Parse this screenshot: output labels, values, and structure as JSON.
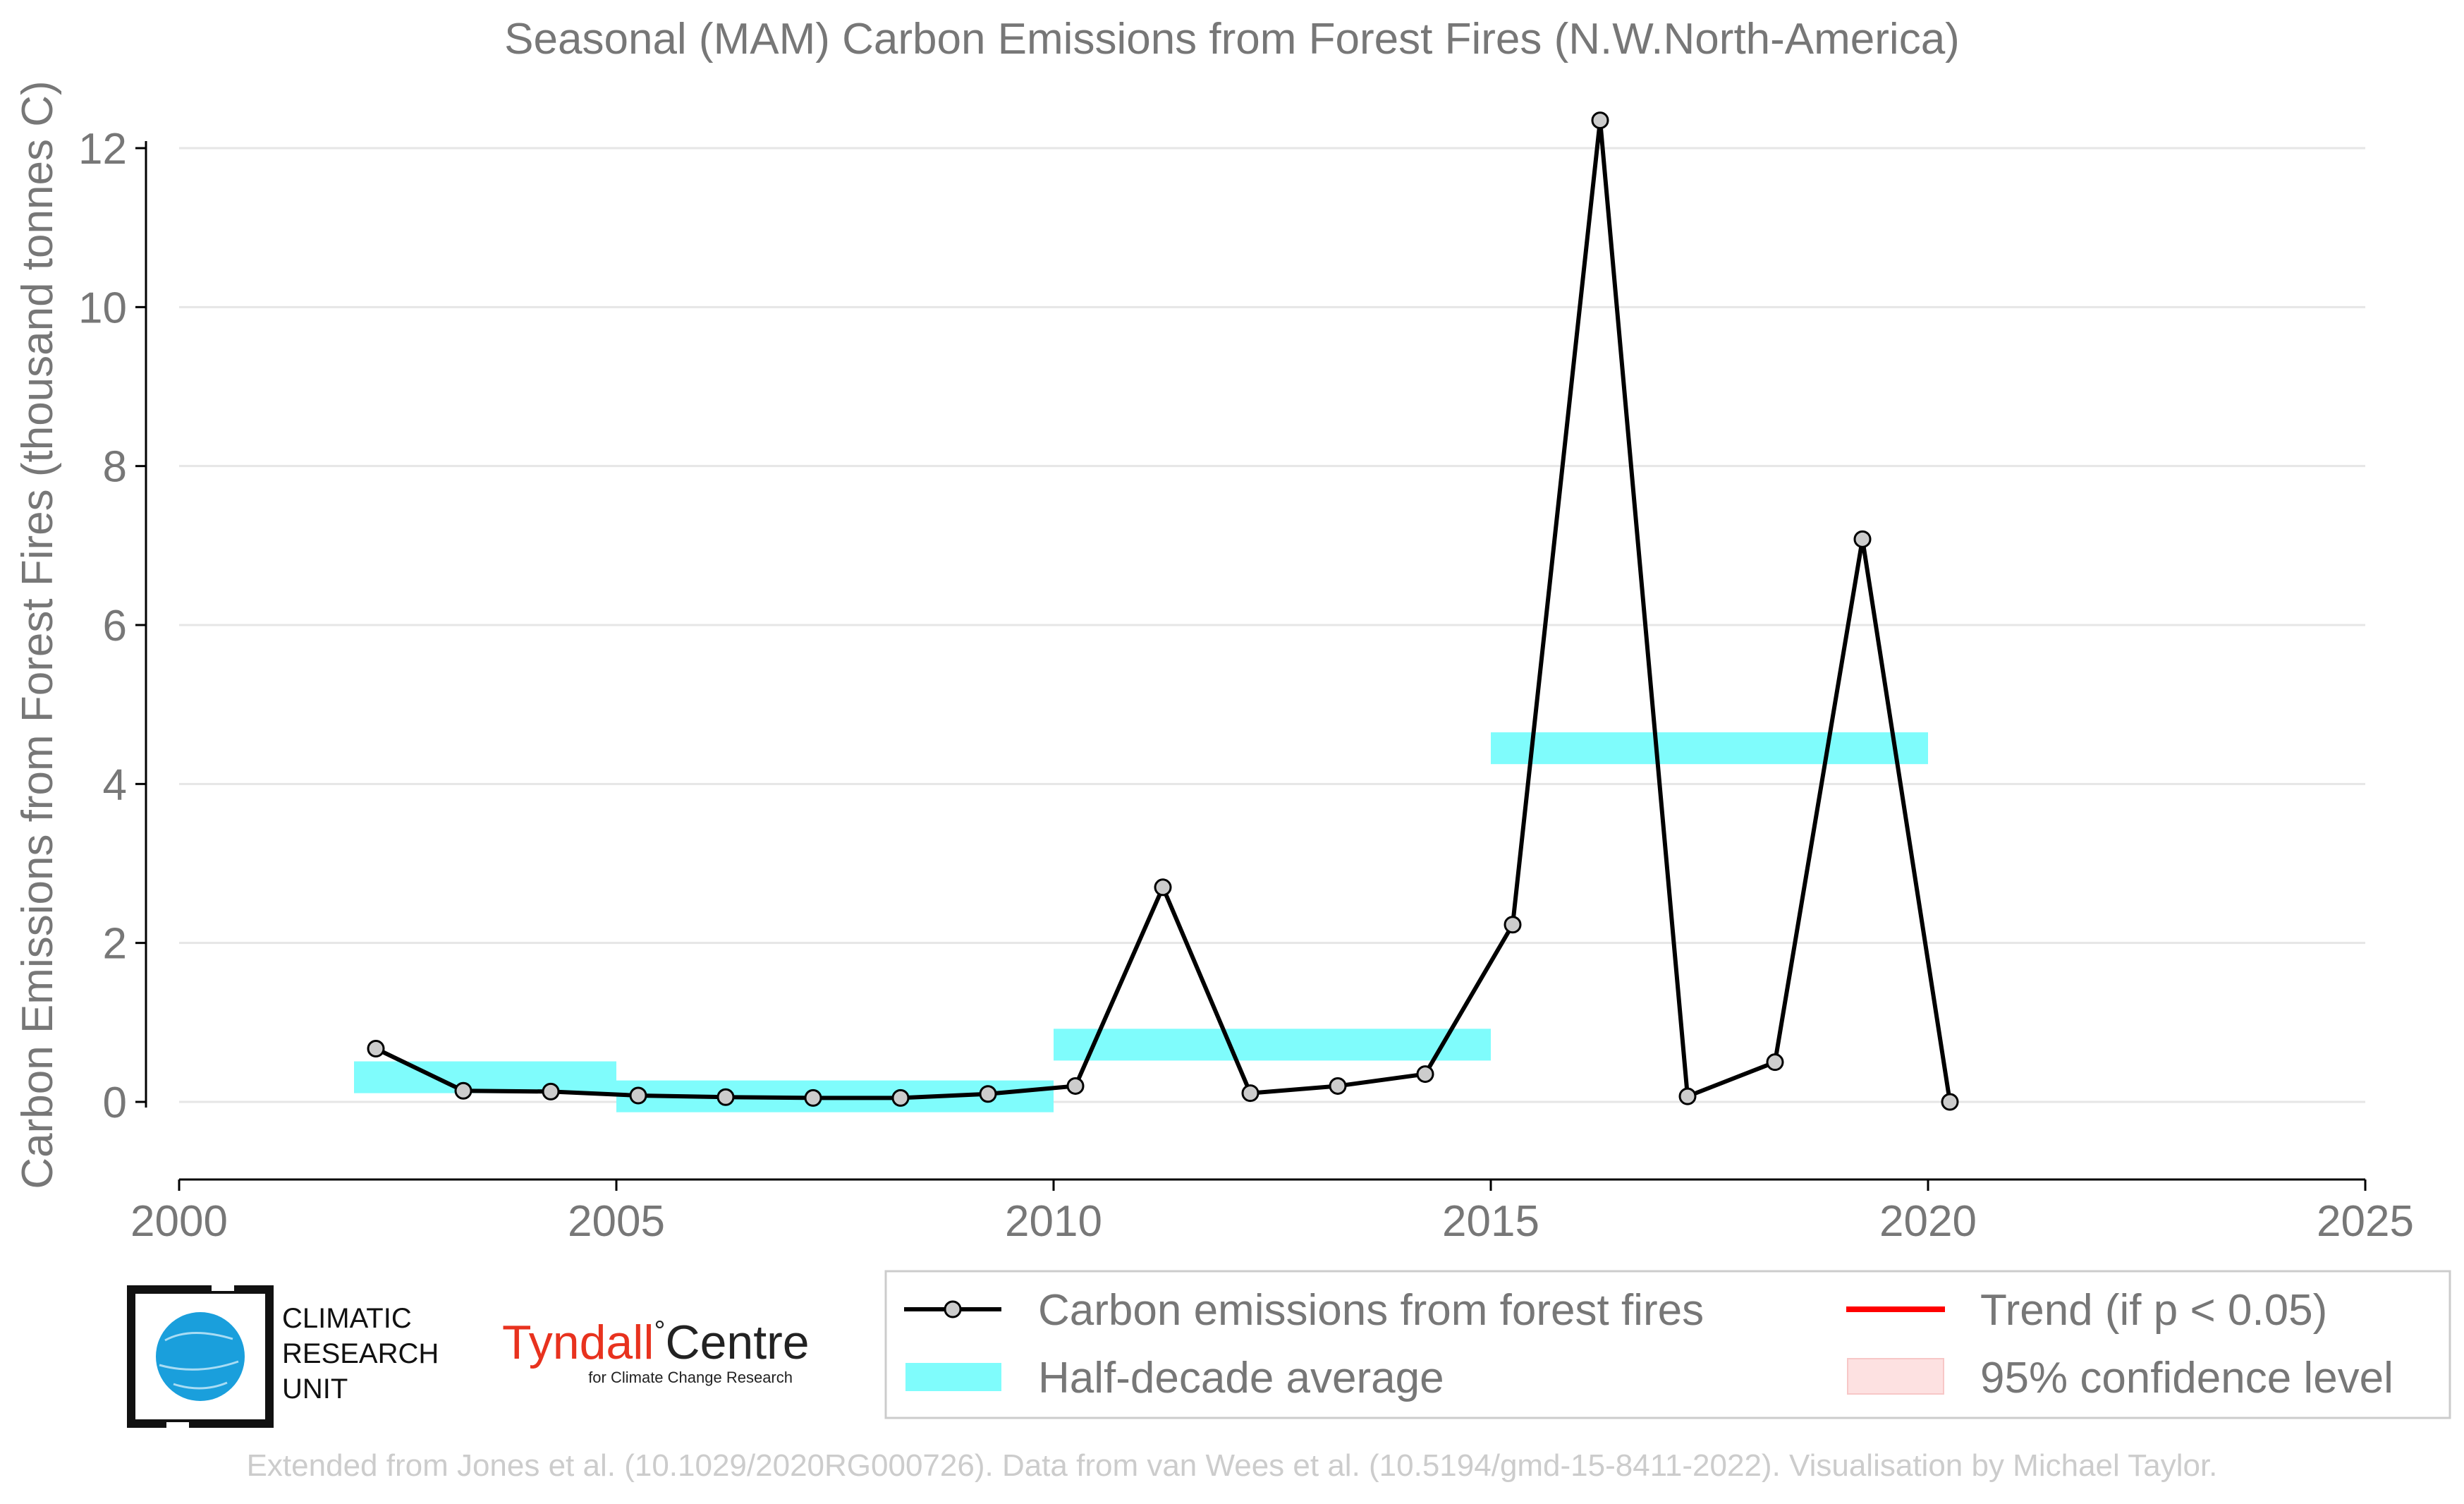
{
  "chart_data": {
    "type": "line",
    "title": "Seasonal (MAM) Carbon Emissions from Forest Fires (N.W.North-America)",
    "ylabel": "Carbon Emissions from Forest Fires (thousand tonnes C)",
    "xlabel": "",
    "xlim": [
      2000,
      2025
    ],
    "ylim": [
      -1,
      12.8
    ],
    "xticks": [
      "2000",
      "2005",
      "2010",
      "2015",
      "2020",
      "2025"
    ],
    "yticks": [
      "0",
      "2",
      "4",
      "6",
      "8",
      "10",
      "12"
    ],
    "grid": "horizontal",
    "legend_position": "bottom",
    "series": [
      {
        "name": "Carbon emissions from forest fires",
        "color": "#000000",
        "x": [
          2002,
          2003,
          2004,
          2005,
          2006,
          2007,
          2008,
          2009,
          2010,
          2011,
          2012,
          2013,
          2014,
          2015,
          2016,
          2017,
          2018,
          2019,
          2020
        ],
        "values": [
          0.67,
          0.14,
          0.13,
          0.08,
          0.06,
          0.05,
          0.05,
          0.1,
          0.2,
          2.7,
          0.11,
          0.2,
          0.35,
          2.23,
          12.35,
          0.07,
          0.5,
          7.08,
          0.0
        ]
      }
    ],
    "half_decade_average": {
      "name": "Half-decade average",
      "color": "#7ffcfc",
      "segments": [
        {
          "x0": 2002,
          "x1": 2005,
          "value": 0.31
        },
        {
          "x0": 2005,
          "x1": 2010,
          "value": 0.07
        },
        {
          "x0": 2010,
          "x1": 2015,
          "value": 0.72
        },
        {
          "x0": 2015,
          "x1": 2020,
          "value": 4.45
        }
      ]
    },
    "legend": [
      {
        "label": "Carbon emissions from forest fires",
        "style": "line-marker",
        "color": "#000000"
      },
      {
        "label": "Trend (if p < 0.05)",
        "style": "line",
        "color": "#ff0000"
      },
      {
        "label": "Half-decade average",
        "style": "band",
        "color": "#7ffcfc"
      },
      {
        "label": "95% confidence level",
        "style": "band",
        "color": "#fde1e1"
      }
    ]
  },
  "logos": {
    "cru": [
      "CLIMATIC",
      "RESEARCH",
      "UNIT"
    ],
    "tyndall_main": "Tyndall",
    "tyndall_degree": "°",
    "tyndall_centre": "Centre",
    "tyndall_sub": "for Climate Change Research"
  },
  "credit": "Extended from Jones et al. (10.1029/2020RG000726). Data from van Wees et al. (10.5194/gmd-15-8411-2022). Visualisation by Michael Taylor."
}
